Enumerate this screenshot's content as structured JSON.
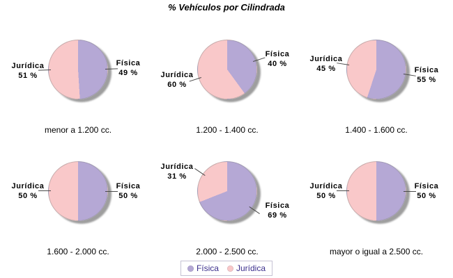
{
  "chart_data": {
    "type": "pie",
    "title": "% Vehículos por Cilindrada",
    "value_suffix": " %",
    "legend_position": "bottom",
    "grid": "2 rows x 3 columns of pies",
    "series": [
      {
        "name": "Física",
        "color": "#B5A8D5"
      },
      {
        "name": "Jurídica",
        "color": "#F9C8C9"
      }
    ],
    "colors": {
      "fisica": "#B5A8D5",
      "juridica": "#F9C8C9",
      "shadow": "#999999",
      "legend_text": "#3B2E8C",
      "connector_line": "#4A4A4A"
    },
    "pies": [
      {
        "category": "menor a 1.200 cc.",
        "values": [
          49,
          51
        ]
      },
      {
        "category": "1.200 - 1.400 cc.",
        "values": [
          40,
          60
        ]
      },
      {
        "category": "1.400 - 1.600 cc.",
        "values": [
          55,
          45
        ]
      },
      {
        "category": "1.600 - 2.000 cc.",
        "values": [
          50,
          50
        ]
      },
      {
        "category": "2.000 - 2.500 cc.",
        "values": [
          69,
          31
        ]
      },
      {
        "category": "mayor o igual a 2.500 cc.",
        "values": [
          50,
          50
        ]
      }
    ]
  },
  "legend": {
    "items": [
      "Física",
      "Jurídica"
    ]
  }
}
